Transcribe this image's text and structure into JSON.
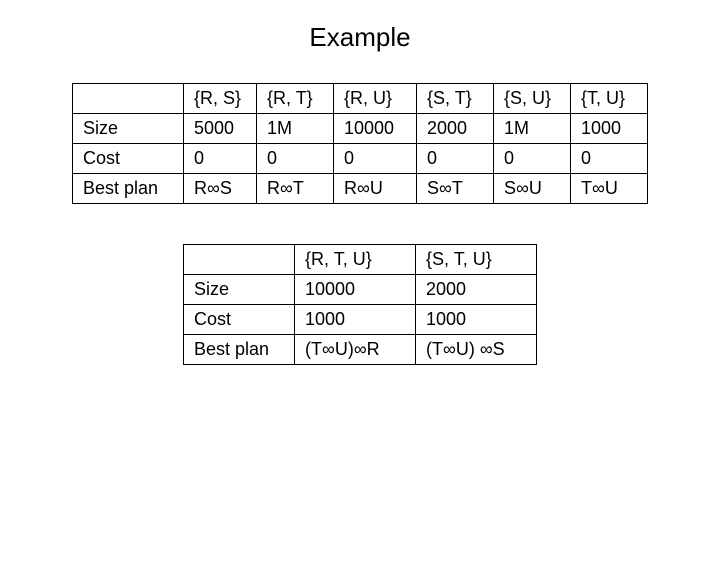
{
  "title": "Example",
  "table1": {
    "headers": [
      "",
      "{R, S}",
      "{R, T}",
      "{R, U}",
      "{S, T}",
      "{S, U}",
      "{T, U}"
    ],
    "rows": [
      {
        "label": "Size",
        "cells": [
          "5000",
          "1M",
          "10000",
          "2000",
          "1M",
          "1000"
        ]
      },
      {
        "label": "Cost",
        "cells": [
          "0",
          "0",
          "0",
          "0",
          "0",
          "0"
        ]
      },
      {
        "label": "Best plan",
        "cells": [
          "R∞S",
          "R∞T",
          "R∞U",
          "S∞T",
          "S∞U",
          "T∞U"
        ]
      }
    ]
  },
  "table2": {
    "headers": [
      "",
      "{R, T, U}",
      "{S, T, U}"
    ],
    "rows": [
      {
        "label": "Size",
        "cells": [
          "10000",
          "2000"
        ]
      },
      {
        "label": "Cost",
        "cells": [
          "1000",
          "1000"
        ]
      },
      {
        "label": "Best plan",
        "cells": [
          "(T∞U)∞R",
          "(T∞U) ∞S"
        ]
      }
    ]
  },
  "style": {
    "background_color": "#ffffff",
    "text_color": "#000000",
    "border_color": "#000000",
    "title_fontsize": 26,
    "cell_fontsize": 18,
    "font_family": "Arial"
  }
}
